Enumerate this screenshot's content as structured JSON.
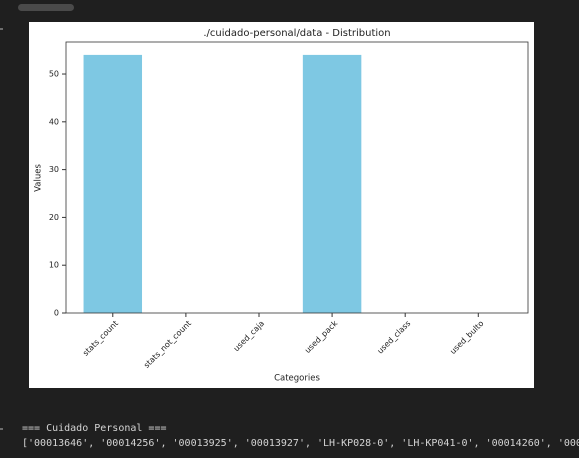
{
  "chart_data": {
    "type": "bar",
    "title": "./cuidado-personal/data - Distribution",
    "x_label": "Categories",
    "y_label": "Values",
    "categories": [
      "stats_count",
      "stats_not_count",
      "used_caja",
      "used_pack",
      "used_class",
      "used_bulto"
    ],
    "values": [
      54,
      0,
      0,
      54,
      0,
      0
    ],
    "color": "#7ec8e3",
    "ylim": [
      0,
      56.7
    ],
    "yticks": [
      0,
      10,
      20,
      30,
      40,
      50
    ],
    "grid": false
  },
  "output": {
    "header": "=== Cuidado Personal ===",
    "list": "['00013646', '00014256', '00013925', '00013927', 'LH-KP028-0', 'LH-KP041-0', '00014260', '000"
  }
}
